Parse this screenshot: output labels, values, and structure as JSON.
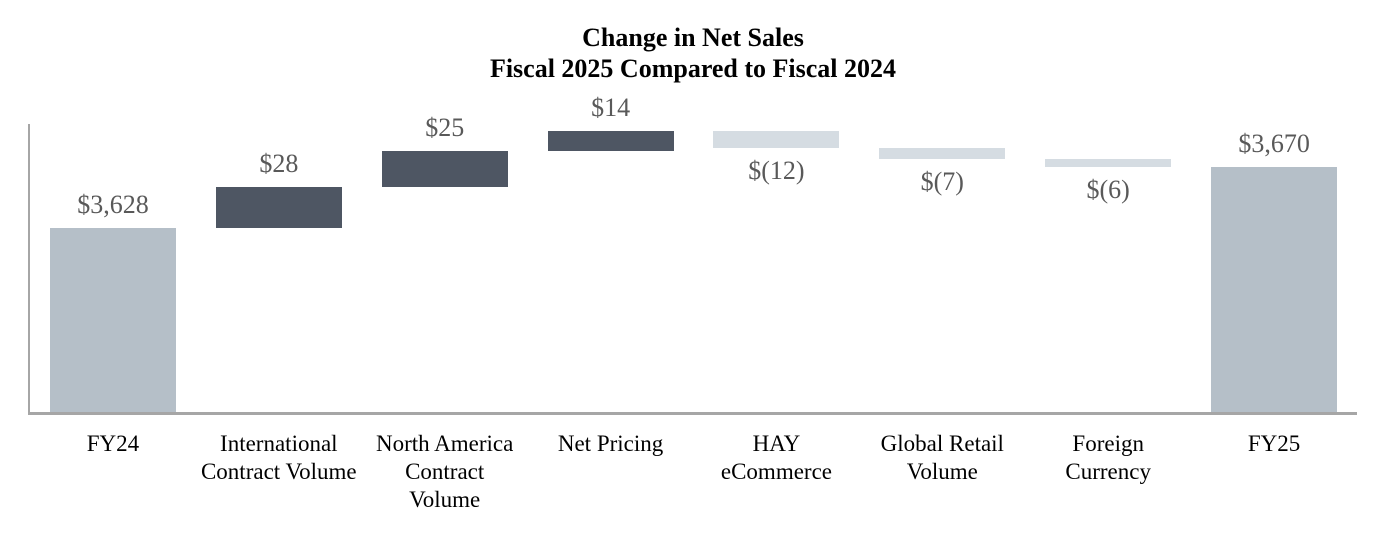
{
  "title": {
    "line1": "Change in Net Sales",
    "line2": "Fiscal 2025 Compared to Fiscal 2024"
  },
  "chart_data": {
    "type": "bar",
    "subtype": "waterfall",
    "title": "Change in Net Sales\nFiscal 2025 Compared to Fiscal 2024",
    "xlabel": "",
    "ylabel": "",
    "ylim": [
      3500,
      3700
    ],
    "grid": false,
    "legend": "none",
    "categories": [
      "FY24",
      "International Contract Volume",
      "North America Contract Volume",
      "Net Pricing",
      "HAY eCommerce",
      "Global Retail Volume",
      "Foreign Currency",
      "FY25"
    ],
    "points": [
      {
        "category": "FY24",
        "label_lines": [
          "FY24"
        ],
        "value": 3628,
        "kind": "total",
        "value_label": "$3,628"
      },
      {
        "category": "International Contract Volume",
        "label_lines": [
          "International",
          "Contract Volume"
        ],
        "value": 28,
        "kind": "increase",
        "value_label": "$28"
      },
      {
        "category": "North America Contract Volume",
        "label_lines": [
          "North America",
          "Contract",
          "Volume"
        ],
        "value": 25,
        "kind": "increase",
        "value_label": "$25"
      },
      {
        "category": "Net Pricing",
        "label_lines": [
          "Net Pricing"
        ],
        "value": 14,
        "kind": "increase",
        "value_label": "$14"
      },
      {
        "category": "HAY eCommerce",
        "label_lines": [
          "HAY",
          "eCommerce"
        ],
        "value": -12,
        "kind": "decrease",
        "value_label": "$(12)"
      },
      {
        "category": "Global Retail Volume",
        "label_lines": [
          "Global Retail",
          "Volume"
        ],
        "value": -7,
        "kind": "decrease",
        "value_label": "$(7)"
      },
      {
        "category": "Foreign Currency",
        "label_lines": [
          "Foreign",
          "Currency"
        ],
        "value": -6,
        "kind": "decrease",
        "value_label": "$(6)"
      },
      {
        "category": "FY25",
        "label_lines": [
          "FY25"
        ],
        "value": 3670,
        "kind": "total",
        "value_label": "$3,670"
      }
    ]
  },
  "colors": {
    "total_bar": "#b5bfc8",
    "increase_bar": "#4e5663",
    "decrease_bar": "#d5dce2",
    "axis_line": "#a6a6a6",
    "value_label_text": "#595959",
    "category_label_text": "#000000",
    "title_text": "#000000",
    "background": "#ffffff"
  }
}
